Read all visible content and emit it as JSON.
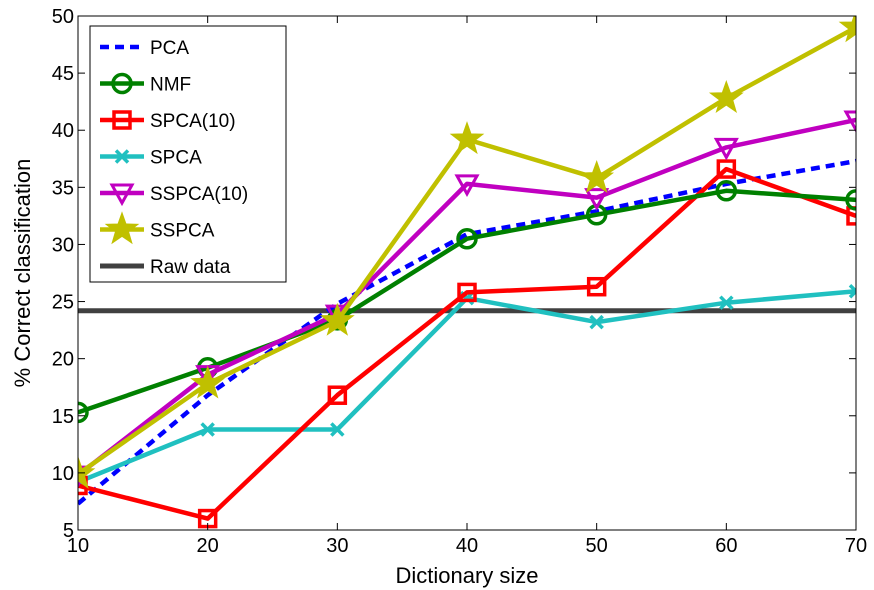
{
  "chart_data": {
    "type": "line",
    "title": "",
    "xlabel": "Dictionary size",
    "ylabel": "% Correct classification",
    "xlim": [
      10,
      70
    ],
    "ylim": [
      5,
      50
    ],
    "xticks": [
      "10",
      "20",
      "30",
      "40",
      "50",
      "60",
      "70"
    ],
    "yticks": [
      "5",
      "10",
      "15",
      "20",
      "25",
      "30",
      "35",
      "40",
      "45",
      "50"
    ],
    "grid": false,
    "legend_position": "top-left",
    "x": [
      10,
      20,
      30,
      40,
      50,
      60,
      70
    ],
    "series": [
      {
        "name": "PCA",
        "color": "#0000ff",
        "dash": true,
        "marker": "none",
        "values": [
          7.3,
          16.8,
          24.8,
          30.9,
          32.9,
          35.3,
          37.3
        ]
      },
      {
        "name": "NMF",
        "color": "#008000",
        "dash": false,
        "marker": "circle",
        "values": [
          15.3,
          19.2,
          23.4,
          30.5,
          32.6,
          34.7,
          33.9
        ]
      },
      {
        "name": "SPCA(10)",
        "color": "#ff0000",
        "dash": false,
        "marker": "square",
        "values": [
          8.9,
          6.0,
          16.8,
          25.8,
          26.3,
          36.6,
          32.5
        ]
      },
      {
        "name": "SPCA",
        "color": "#20c0c0",
        "dash": false,
        "marker": "x",
        "values": [
          9.2,
          13.8,
          13.8,
          25.3,
          23.2,
          24.9,
          25.9
        ]
      },
      {
        "name": "SSPCA(10)",
        "color": "#c000c0",
        "dash": false,
        "marker": "triangle-down",
        "values": [
          9.8,
          18.6,
          23.9,
          35.3,
          34.1,
          38.5,
          40.9
        ]
      },
      {
        "name": "SSPCA",
        "color": "#c0c000",
        "dash": false,
        "marker": "star",
        "values": [
          9.9,
          17.8,
          23.3,
          39.2,
          35.8,
          42.8,
          49.0
        ]
      },
      {
        "name": "Raw data",
        "color": "#404040",
        "dash": false,
        "marker": "none",
        "values": [
          24.2,
          24.2,
          24.2,
          24.2,
          24.2,
          24.2,
          24.2
        ]
      }
    ]
  }
}
